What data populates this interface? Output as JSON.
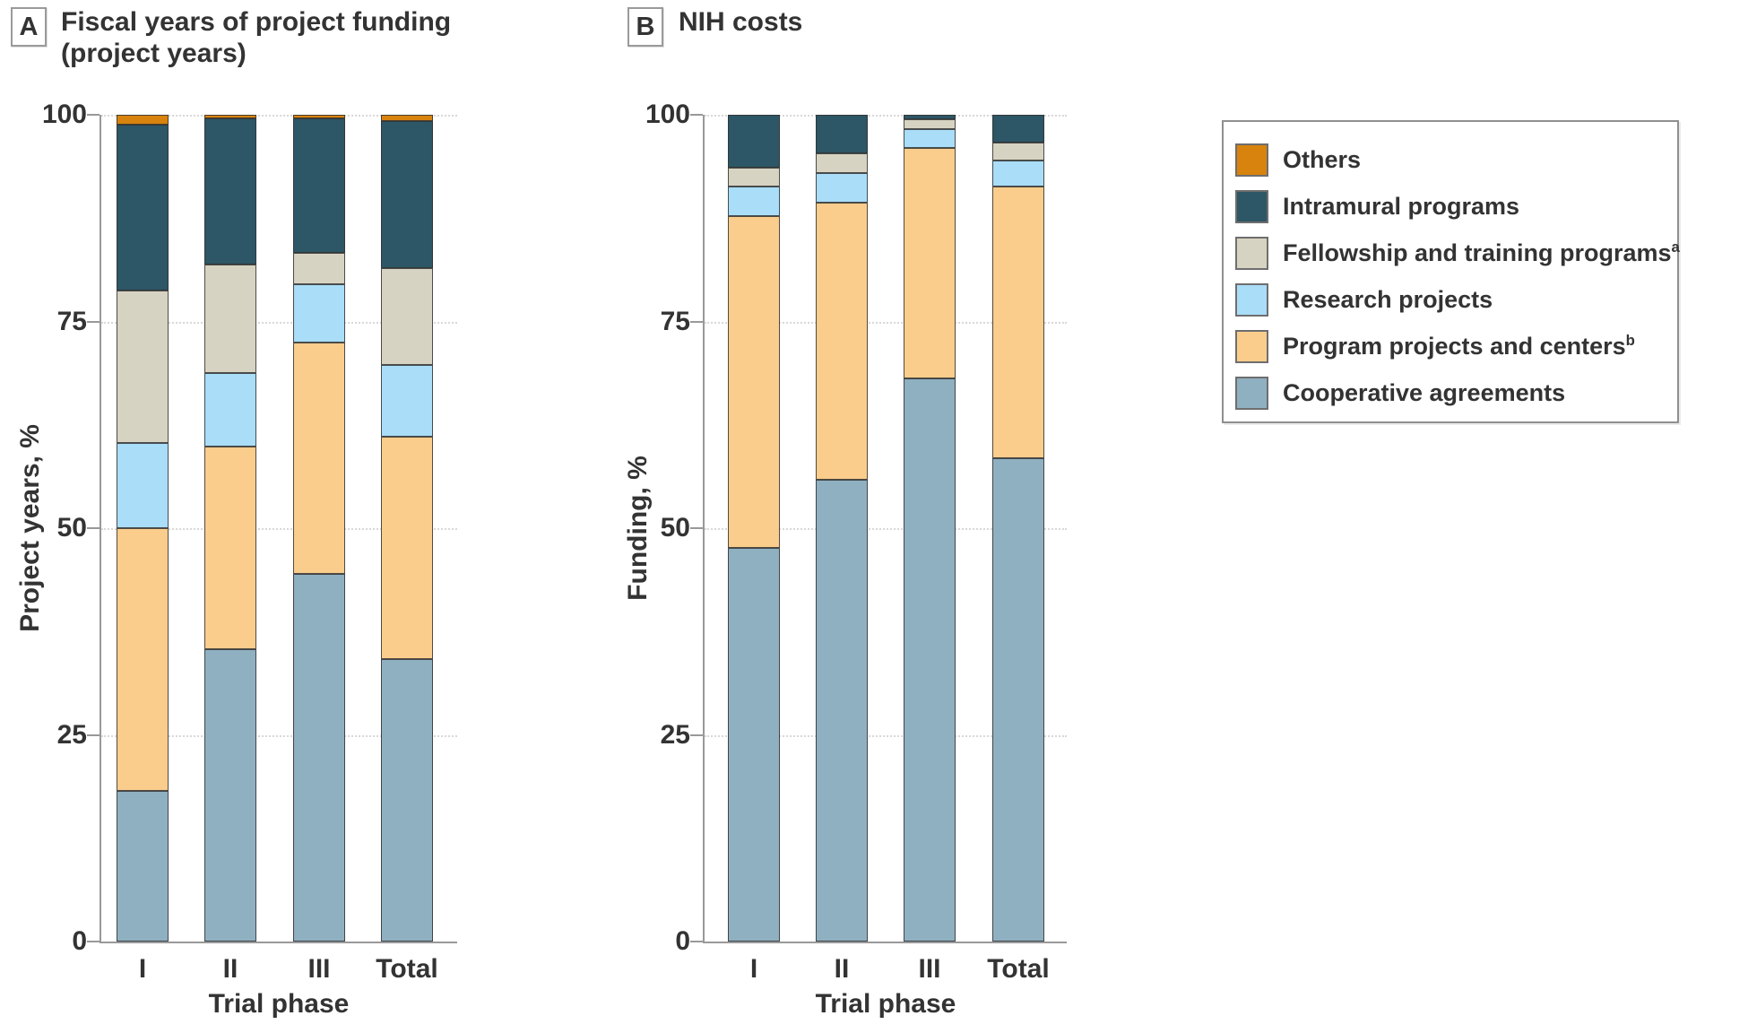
{
  "figure": {
    "background": "#ffffff"
  },
  "colors": {
    "others": "#d8830e",
    "intramural": "#2d5666",
    "fellowship": "#d7d3c2",
    "research": "#a9ddf8",
    "program": "#facd8c",
    "cooperative": "#8fb0c1",
    "segment_border": "#323232",
    "grid": "#d8d8d8",
    "axis": "#999999",
    "text": "#333333"
  },
  "legend": {
    "items": [
      {
        "key": "others",
        "label": "Others",
        "sup": ""
      },
      {
        "key": "intramural",
        "label": "Intramural programs",
        "sup": ""
      },
      {
        "key": "fellowship",
        "label": "Fellowship and training programs",
        "sup": "a"
      },
      {
        "key": "research",
        "label": "Research projects",
        "sup": ""
      },
      {
        "key": "program",
        "label": "Program projects and centers",
        "sup": "b"
      },
      {
        "key": "cooperative",
        "label": "Cooperative agreements",
        "sup": ""
      }
    ]
  },
  "chart_data": [
    {
      "type": "bar",
      "stacked": true,
      "panel_letter": "A",
      "title": "Fiscal years of project funding",
      "subtitle": "(project years)",
      "xlabel": "Trial phase",
      "ylabel": "Project years, %",
      "ylim": [
        0,
        100
      ],
      "yticks": [
        0,
        25,
        50,
        75,
        100
      ],
      "grid": "dotted horizontal at yticks",
      "legend_position": "outside right",
      "categories": [
        "I",
        "II",
        "III",
        "Total"
      ],
      "series": [
        {
          "name": "Cooperative agreements",
          "key": "cooperative",
          "values": [
            18.2,
            35.4,
            44.5,
            34.2
          ]
        },
        {
          "name": "Program projects and centers",
          "key": "program",
          "values": [
            31.8,
            24.5,
            27.9,
            26.9
          ]
        },
        {
          "name": "Research projects",
          "key": "research",
          "values": [
            10.3,
            8.9,
            7.1,
            8.6
          ]
        },
        {
          "name": "Fellowship and training programs",
          "key": "fellowship",
          "values": [
            18.4,
            13.1,
            3.8,
            11.8
          ]
        },
        {
          "name": "Intramural programs",
          "key": "intramural",
          "values": [
            20.1,
            17.7,
            16.3,
            17.7
          ]
        },
        {
          "name": "Others",
          "key": "others",
          "values": [
            1.2,
            0.4,
            0.4,
            0.8
          ]
        }
      ]
    },
    {
      "type": "bar",
      "stacked": true,
      "panel_letter": "B",
      "title": "NIH costs",
      "subtitle": "",
      "xlabel": "Trial phase",
      "ylabel": "Funding, %",
      "ylim": [
        0,
        100
      ],
      "yticks": [
        0,
        25,
        50,
        75,
        100
      ],
      "grid": "dotted horizontal at yticks",
      "legend_position": "outside right",
      "categories": [
        "I",
        "II",
        "III",
        "Total"
      ],
      "series": [
        {
          "name": "Cooperative agreements",
          "key": "cooperative",
          "values": [
            47.6,
            55.9,
            68.1,
            58.5
          ]
        },
        {
          "name": "Program projects and centers",
          "key": "program",
          "values": [
            40.1,
            33.5,
            27.9,
            32.8
          ]
        },
        {
          "name": "Research projects",
          "key": "research",
          "values": [
            3.6,
            3.5,
            2.3,
            3.2
          ]
        },
        {
          "name": "Fellowship and training programs",
          "key": "fellowship",
          "values": [
            2.3,
            2.4,
            1.2,
            2.1
          ]
        },
        {
          "name": "Intramural programs",
          "key": "intramural",
          "values": [
            6.4,
            4.7,
            0.5,
            3.4
          ]
        },
        {
          "name": "Others",
          "key": "others",
          "values": [
            0,
            0,
            0,
            0
          ]
        }
      ]
    }
  ]
}
